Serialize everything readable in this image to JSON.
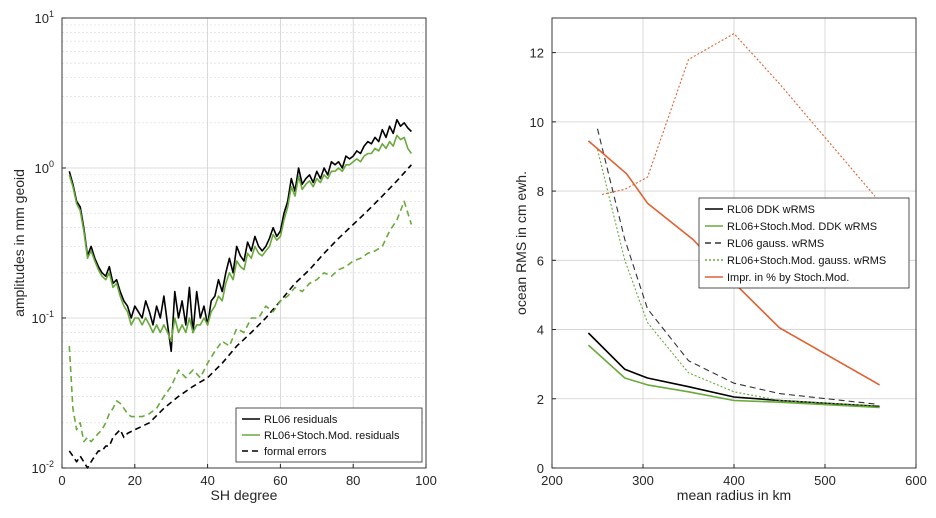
{
  "chart_data": [
    {
      "type": "line",
      "xlabel": "SH degree",
      "ylabel": "amplitudes in mm geoid",
      "xlim": [
        0,
        100
      ],
      "ylim": [
        0.01,
        10
      ],
      "yscale": "log",
      "xticks": [
        0,
        20,
        40,
        60,
        80,
        100
      ],
      "yticks": [
        0.01,
        0.1,
        1,
        10
      ],
      "ytick_labels": [
        [
          "10",
          "-2"
        ],
        [
          "10",
          "-1"
        ],
        [
          "10",
          "0"
        ],
        [
          "10",
          "1"
        ]
      ],
      "grid": true,
      "legend_position": "bottom-right",
      "series": [
        {
          "name": "RL06 residuals",
          "color": "#000000",
          "style": "solid",
          "x": [
            2,
            3,
            4,
            5,
            6,
            7,
            8,
            9,
            10,
            11,
            12,
            13,
            14,
            15,
            16,
            17,
            18,
            19,
            20,
            21,
            22,
            23,
            24,
            25,
            26,
            27,
            28,
            29,
            30,
            31,
            32,
            33,
            34,
            35,
            36,
            37,
            38,
            39,
            40,
            41,
            42,
            43,
            44,
            45,
            46,
            47,
            48,
            49,
            50,
            51,
            52,
            53,
            54,
            55,
            56,
            57,
            58,
            59,
            60,
            61,
            62,
            63,
            64,
            65,
            66,
            67,
            68,
            69,
            70,
            71,
            72,
            73,
            74,
            75,
            76,
            77,
            78,
            79,
            80,
            81,
            82,
            83,
            84,
            85,
            86,
            87,
            88,
            89,
            90,
            91,
            92,
            93,
            94,
            95,
            96
          ],
          "y": [
            0.95,
            0.78,
            0.6,
            0.55,
            0.4,
            0.26,
            0.3,
            0.25,
            0.22,
            0.2,
            0.19,
            0.22,
            0.17,
            0.18,
            0.15,
            0.13,
            0.12,
            0.1,
            0.12,
            0.11,
            0.1,
            0.13,
            0.11,
            0.09,
            0.12,
            0.1,
            0.14,
            0.09,
            0.06,
            0.15,
            0.1,
            0.13,
            0.09,
            0.16,
            0.08,
            0.15,
            0.1,
            0.12,
            0.09,
            0.13,
            0.14,
            0.18,
            0.15,
            0.2,
            0.25,
            0.2,
            0.3,
            0.26,
            0.24,
            0.32,
            0.28,
            0.35,
            0.3,
            0.28,
            0.3,
            0.34,
            0.4,
            0.35,
            0.38,
            0.5,
            0.6,
            0.85,
            0.7,
            1.0,
            0.78,
            0.85,
            0.9,
            0.8,
            0.95,
            0.85,
            1.0,
            0.9,
            1.1,
            1.05,
            1.1,
            1.0,
            1.2,
            1.15,
            1.2,
            1.3,
            1.25,
            1.4,
            1.5,
            1.45,
            1.6,
            1.5,
            1.8,
            1.6,
            1.9,
            1.7,
            2.1,
            1.9,
            2.0,
            1.85,
            1.75
          ]
        },
        {
          "name": "RL06+Stoch.Mod. residuals",
          "color": "#6aaa3c",
          "style": "solid",
          "x": [
            2,
            3,
            4,
            5,
            6,
            7,
            8,
            9,
            10,
            11,
            12,
            13,
            14,
            15,
            16,
            17,
            18,
            19,
            20,
            21,
            22,
            23,
            24,
            25,
            26,
            27,
            28,
            29,
            30,
            31,
            32,
            33,
            34,
            35,
            36,
            37,
            38,
            39,
            40,
            41,
            42,
            43,
            44,
            45,
            46,
            47,
            48,
            49,
            50,
            51,
            52,
            53,
            54,
            55,
            56,
            57,
            58,
            59,
            60,
            61,
            62,
            63,
            64,
            65,
            66,
            67,
            68,
            69,
            70,
            71,
            72,
            73,
            74,
            75,
            76,
            77,
            78,
            79,
            80,
            81,
            82,
            83,
            84,
            85,
            86,
            87,
            88,
            89,
            90,
            91,
            92,
            93,
            94,
            95,
            96
          ],
          "y": [
            0.9,
            0.75,
            0.58,
            0.52,
            0.38,
            0.25,
            0.28,
            0.24,
            0.21,
            0.19,
            0.18,
            0.2,
            0.16,
            0.17,
            0.14,
            0.12,
            0.11,
            0.09,
            0.1,
            0.1,
            0.09,
            0.1,
            0.09,
            0.08,
            0.09,
            0.08,
            0.09,
            0.08,
            0.07,
            0.1,
            0.08,
            0.09,
            0.08,
            0.1,
            0.08,
            0.09,
            0.09,
            0.1,
            0.09,
            0.11,
            0.12,
            0.14,
            0.13,
            0.17,
            0.2,
            0.18,
            0.24,
            0.22,
            0.21,
            0.27,
            0.25,
            0.3,
            0.27,
            0.26,
            0.28,
            0.3,
            0.36,
            0.33,
            0.35,
            0.45,
            0.55,
            0.75,
            0.65,
            0.88,
            0.72,
            0.78,
            0.82,
            0.75,
            0.85,
            0.8,
            0.9,
            0.85,
            0.95,
            0.95,
            1.0,
            0.95,
            1.05,
            1.05,
            1.1,
            1.15,
            1.1,
            1.2,
            1.25,
            1.25,
            1.35,
            1.3,
            1.45,
            1.35,
            1.5,
            1.4,
            1.65,
            1.55,
            1.6,
            1.35,
            1.25
          ]
        },
        {
          "name": "formal errors",
          "color": "#000000",
          "style": "dashed",
          "x": [
            2,
            3,
            4,
            5,
            6,
            7,
            8,
            9,
            10,
            11,
            12,
            13,
            14,
            15,
            16,
            17,
            18,
            20,
            24,
            28,
            32,
            36,
            40,
            44,
            48,
            52,
            56,
            60,
            64,
            68,
            72,
            76,
            80,
            84,
            88,
            92,
            96
          ],
          "y": [
            0.013,
            0.012,
            0.011,
            0.012,
            0.011,
            0.01,
            0.011,
            0.012,
            0.013,
            0.013,
            0.014,
            0.014,
            0.016,
            0.017,
            0.018,
            0.016,
            0.017,
            0.018,
            0.02,
            0.025,
            0.03,
            0.035,
            0.04,
            0.05,
            0.065,
            0.08,
            0.1,
            0.13,
            0.17,
            0.21,
            0.27,
            0.34,
            0.42,
            0.52,
            0.65,
            0.82,
            1.05
          ]
        },
        {
          "name": "",
          "color": "#6aaa3c",
          "style": "dashed",
          "x": [
            2,
            3,
            4,
            5,
            6,
            7,
            8,
            9,
            10,
            11,
            12,
            13,
            14,
            15,
            16,
            17,
            18,
            19,
            20,
            22,
            24,
            26,
            28,
            30,
            32,
            34,
            36,
            38,
            40,
            42,
            44,
            46,
            48,
            50,
            52,
            54,
            56,
            58,
            60,
            62,
            64,
            66,
            68,
            70,
            72,
            74,
            76,
            78,
            80,
            82,
            84,
            86,
            88,
            90,
            92,
            94,
            96
          ],
          "y": [
            0.065,
            0.025,
            0.018,
            0.02,
            0.015,
            0.016,
            0.015,
            0.016,
            0.017,
            0.018,
            0.02,
            0.023,
            0.025,
            0.028,
            0.027,
            0.025,
            0.023,
            0.022,
            0.022,
            0.022,
            0.023,
            0.025,
            0.03,
            0.035,
            0.045,
            0.04,
            0.045,
            0.04,
            0.05,
            0.06,
            0.07,
            0.065,
            0.085,
            0.08,
            0.1,
            0.1,
            0.12,
            0.11,
            0.13,
            0.14,
            0.16,
            0.15,
            0.17,
            0.18,
            0.2,
            0.19,
            0.21,
            0.22,
            0.24,
            0.25,
            0.27,
            0.28,
            0.3,
            0.38,
            0.45,
            0.6,
            0.42
          ]
        }
      ]
    },
    {
      "type": "line",
      "xlabel": "mean radius in km",
      "ylabel": "ocean RMS in cm ewh.",
      "xlim": [
        200,
        600
      ],
      "ylim": [
        0,
        13
      ],
      "xticks": [
        200,
        300,
        400,
        500,
        600
      ],
      "yticks": [
        0,
        2,
        4,
        6,
        8,
        10,
        12
      ],
      "grid": true,
      "legend_position": "center-right",
      "series": [
        {
          "name": "RL06 DDK wRMS",
          "color": "#000000",
          "style": "solid",
          "x": [
            240,
            280,
            305,
            350,
            400,
            450,
            560
          ],
          "y": [
            3.9,
            2.85,
            2.6,
            2.35,
            2.05,
            1.95,
            1.78
          ]
        },
        {
          "name": "RL06+Stoch.Mod. DDK wRMS",
          "color": "#6aaa3c",
          "style": "solid",
          "x": [
            240,
            280,
            305,
            350,
            400,
            450,
            560
          ],
          "y": [
            3.55,
            2.6,
            2.4,
            2.2,
            1.95,
            1.9,
            1.75
          ]
        },
        {
          "name": "RL06 gauss. wRMS",
          "color": "#333333",
          "style": "dashed",
          "x": [
            250,
            265,
            280,
            305,
            350,
            400,
            450,
            555
          ],
          "y": [
            9.8,
            8.2,
            6.6,
            4.6,
            3.1,
            2.45,
            2.15,
            1.85
          ]
        },
        {
          "name": "RL06+Stoch.Mod. gauss. wRMS",
          "color": "#6aaa3c",
          "style": "dotted",
          "x": [
            250,
            265,
            280,
            305,
            350,
            400,
            450,
            555
          ],
          "y": [
            9.2,
            7.6,
            6.0,
            4.2,
            2.75,
            2.2,
            1.95,
            1.8
          ]
        },
        {
          "name": "Impr. in % by Stoch.Mod.",
          "color": "#e06030",
          "style": "solid",
          "x": [
            240,
            282,
            305,
            355,
            400,
            450,
            560
          ],
          "y": [
            9.45,
            8.5,
            7.65,
            6.6,
            5.35,
            4.05,
            2.4
          ]
        },
        {
          "name": "",
          "color": "#e06030",
          "style": "dotted",
          "x": [
            255,
            280,
            305,
            350,
            400,
            450,
            555
          ],
          "y": [
            7.9,
            8.05,
            8.4,
            11.8,
            12.55,
            11.1,
            7.85
          ]
        }
      ]
    }
  ]
}
